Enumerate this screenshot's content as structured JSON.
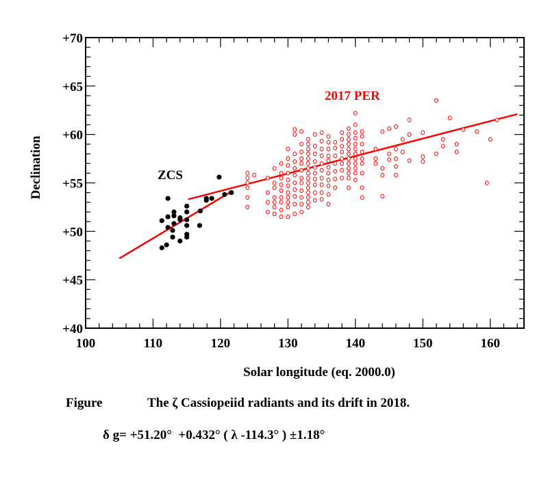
{
  "chart_data": {
    "type": "scatter",
    "xlabel": "Solar longitude (eq. 2000.0)",
    "ylabel": "Declination",
    "xlim": [
      100,
      165
    ],
    "ylim": [
      40,
      70
    ],
    "grid": false,
    "x_ticks": [
      "100",
      "110",
      "120",
      "130",
      "140",
      "150",
      "160"
    ],
    "y_ticks": [
      "+40",
      "+45",
      "+50",
      "+55",
      "+60",
      "+65",
      "+70"
    ],
    "colors": {
      "ZCS": "#000000",
      "PER": "#ff0000",
      "fit": "#ff0000"
    },
    "annotations": {
      "zcs": "ZCS",
      "per": "2017 PER"
    },
    "zcs_points": [
      [
        112.2,
        53.4
      ],
      [
        119.8,
        55.6
      ],
      [
        111.3,
        51.1
      ],
      [
        112.2,
        51.5
      ],
      [
        113.1,
        52.0
      ],
      [
        113.1,
        51.6
      ],
      [
        114.0,
        51.4
      ],
      [
        114.0,
        51.2
      ],
      [
        115.0,
        52.6
      ],
      [
        115.0,
        52.0
      ],
      [
        115.0,
        51.2
      ],
      [
        115.0,
        50.6
      ],
      [
        115.0,
        49.7
      ],
      [
        115.0,
        49.4
      ],
      [
        114.0,
        49.0
      ],
      [
        113.1,
        50.8
      ],
      [
        112.2,
        50.4
      ],
      [
        112.9,
        50.1
      ],
      [
        112.9,
        49.4
      ],
      [
        112.0,
        48.6
      ],
      [
        111.3,
        48.3
      ],
      [
        116.9,
        50.6
      ],
      [
        117.0,
        52.1
      ],
      [
        117.9,
        53.4
      ],
      [
        117.9,
        53.2
      ],
      [
        118.7,
        53.4
      ],
      [
        120.6,
        53.8
      ],
      [
        121.6,
        54.0
      ]
    ],
    "per_columns": [
      {
        "lon": 124,
        "dec": [
          56,
          55.5,
          55,
          54.5,
          53.5,
          52.5
        ]
      },
      {
        "lon": 125,
        "dec": [
          55.8
        ]
      },
      {
        "lon": 127,
        "dec": [
          55.5,
          54,
          53,
          52
        ]
      },
      {
        "lon": 128,
        "dec": [
          56.5,
          55,
          54.5,
          53.5,
          53,
          52.5,
          51.8
        ]
      },
      {
        "lon": 129,
        "dec": [
          57,
          56,
          55.5,
          54.8,
          54.2,
          53.5,
          53,
          52.2,
          51.5
        ]
      },
      {
        "lon": 130,
        "dec": [
          58.5,
          57.5,
          56.8,
          56,
          55.3,
          54.7,
          54,
          53.5,
          53,
          52.5,
          51.5
        ]
      },
      {
        "lon": 131,
        "dec": [
          60.5,
          60,
          58,
          57.2,
          56.5,
          55.8,
          55,
          54.3,
          53.6,
          52.8,
          51.8
        ]
      },
      {
        "lon": 132,
        "dec": [
          60.3,
          59,
          58.2,
          57.5,
          57,
          56.3,
          55.5,
          55,
          54.2,
          53.5,
          52.8,
          52
        ]
      },
      {
        "lon": 133,
        "dec": [
          59.5,
          59,
          58.5,
          58,
          57.5,
          57,
          56.5,
          56,
          55.5,
          55,
          54.5,
          54,
          53.5,
          53,
          52.5
        ]
      },
      {
        "lon": 134,
        "dec": [
          60,
          58.8,
          58,
          57.2,
          56.6,
          56,
          55.4,
          54.8,
          54,
          53.2
        ]
      },
      {
        "lon": 135,
        "dec": [
          60.2,
          59.3,
          58.5,
          57.8,
          57,
          56.3,
          55.5,
          54.8,
          54,
          53.3
        ]
      },
      {
        "lon": 136,
        "dec": [
          59.8,
          59.2,
          58.5,
          57.8,
          57.3,
          56.6,
          56,
          55.3,
          54.7,
          53.8,
          52.8
        ]
      },
      {
        "lon": 137,
        "dec": [
          59.2,
          58.6,
          57.8,
          57,
          56.2,
          55.4,
          54.5
        ]
      },
      {
        "lon": 138,
        "dec": [
          60.2,
          59.5,
          58.8,
          58.2,
          57.5,
          57,
          56.3,
          55.5
        ]
      },
      {
        "lon": 139,
        "dec": [
          60.6,
          60,
          59.5,
          59,
          58.5,
          58,
          57.5,
          57,
          56.5,
          56,
          55.5,
          54.5
        ]
      },
      {
        "lon": 140,
        "dec": [
          62.2,
          61,
          60.2,
          59.6,
          59,
          58.5,
          58,
          57.5,
          57,
          56.5,
          56,
          55.3
        ]
      },
      {
        "lon": 141,
        "dec": [
          60.3,
          59.8,
          59,
          58.2,
          57.5,
          57,
          56,
          54.5,
          53.5
        ]
      },
      {
        "lon": 143,
        "dec": [
          58.5,
          57.5,
          57
        ]
      },
      {
        "lon": 144,
        "dec": [
          60.3,
          56.5,
          55.8,
          53.6
        ]
      },
      {
        "lon": 145,
        "dec": [
          60.6,
          58,
          57.4
        ]
      },
      {
        "lon": 146,
        "dec": [
          60.8,
          58.5,
          57.5,
          56.7,
          55.8
        ]
      },
      {
        "lon": 147,
        "dec": [
          59.5,
          58.2
        ]
      },
      {
        "lon": 148,
        "dec": [
          61.5,
          60,
          57.3
        ]
      },
      {
        "lon": 150,
        "dec": [
          60.2,
          57.7,
          57.2
        ]
      },
      {
        "lon": 152,
        "dec": [
          63.5,
          58
        ]
      },
      {
        "lon": 153,
        "dec": [
          59.5,
          58.8
        ]
      },
      {
        "lon": 154,
        "dec": [
          61.7
        ]
      },
      {
        "lon": 155,
        "dec": [
          59,
          58.2
        ]
      },
      {
        "lon": 156,
        "dec": [
          60.5
        ]
      },
      {
        "lon": 158,
        "dec": [
          60.3
        ]
      },
      {
        "lon": 159.5,
        "dec": [
          55
        ]
      },
      {
        "lon": 160,
        "dec": [
          59.5
        ]
      },
      {
        "lon": 161,
        "dec": [
          61.5
        ]
      }
    ],
    "fit_lines": [
      {
        "from": [
          105,
          47.2
        ],
        "to": [
          121.6,
          54.1
        ]
      },
      {
        "from": [
          115.2,
          53.3
        ],
        "to": [
          164,
          62.1
        ]
      }
    ]
  },
  "caption": {
    "line1_label": "Figure",
    "line1_text": "The ζ Cassiopeiid radiants and its drift in 2018.",
    "line2": "δ g= +51.20°  +0.432° ( λ -114.3° ) ±1.18°"
  }
}
